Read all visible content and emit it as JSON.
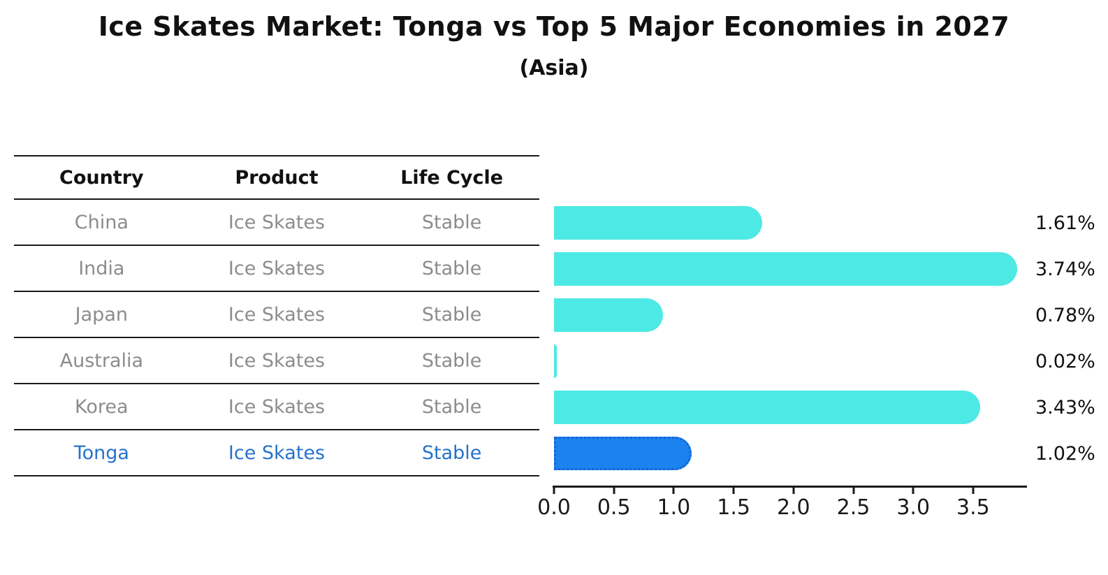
{
  "title": "Ice Skates Market: Tonga vs Top 5 Major Economies in 2027",
  "subtitle": "(Asia)",
  "table": {
    "headers": [
      "Country",
      "Product",
      "Life Cycle"
    ],
    "rows": [
      {
        "country": "China",
        "product": "Ice Skates",
        "life_cycle": "Stable",
        "highlighted": false
      },
      {
        "country": "India",
        "product": "Ice Skates",
        "life_cycle": "Stable",
        "highlighted": false
      },
      {
        "country": "Japan",
        "product": "Ice Skates",
        "life_cycle": "Stable",
        "highlighted": false
      },
      {
        "country": "Australia",
        "product": "Ice Skates",
        "life_cycle": "Stable",
        "highlighted": false
      },
      {
        "country": "Korea",
        "product": "Ice Skates",
        "life_cycle": "Stable",
        "highlighted": false
      },
      {
        "country": "Tonga",
        "product": "Ice Skates",
        "life_cycle": "Stable",
        "highlighted": true
      }
    ]
  },
  "chart_data": {
    "type": "bar",
    "orientation": "horizontal",
    "title": "Ice Skates Market: Tonga vs Top 5 Major Economies in 2027",
    "subtitle": "(Asia)",
    "categories": [
      "China",
      "India",
      "Japan",
      "Australia",
      "Korea",
      "Tonga"
    ],
    "values": [
      1.61,
      3.74,
      0.78,
      0.02,
      3.43,
      1.02
    ],
    "value_labels": [
      "1.61%",
      "3.74%",
      "0.78%",
      "0.02%",
      "3.43%",
      "1.02%"
    ],
    "unit": "%",
    "x_ticks": [
      "0.0",
      "0.5",
      "1.0",
      "1.5",
      "2.0",
      "2.5",
      "3.0",
      "3.5"
    ],
    "xlim": [
      0,
      3.95
    ],
    "grid": false,
    "legend": false,
    "highlight_category": "Tonga",
    "colors": {
      "bar": "#4de9e4",
      "highlight_bar": "#1b82ee",
      "highlight_bar_edge": "#1565d8",
      "highlight_text": "#2673cb",
      "table_text": "#8c8c8c",
      "axis": "#1a1a1a"
    }
  }
}
